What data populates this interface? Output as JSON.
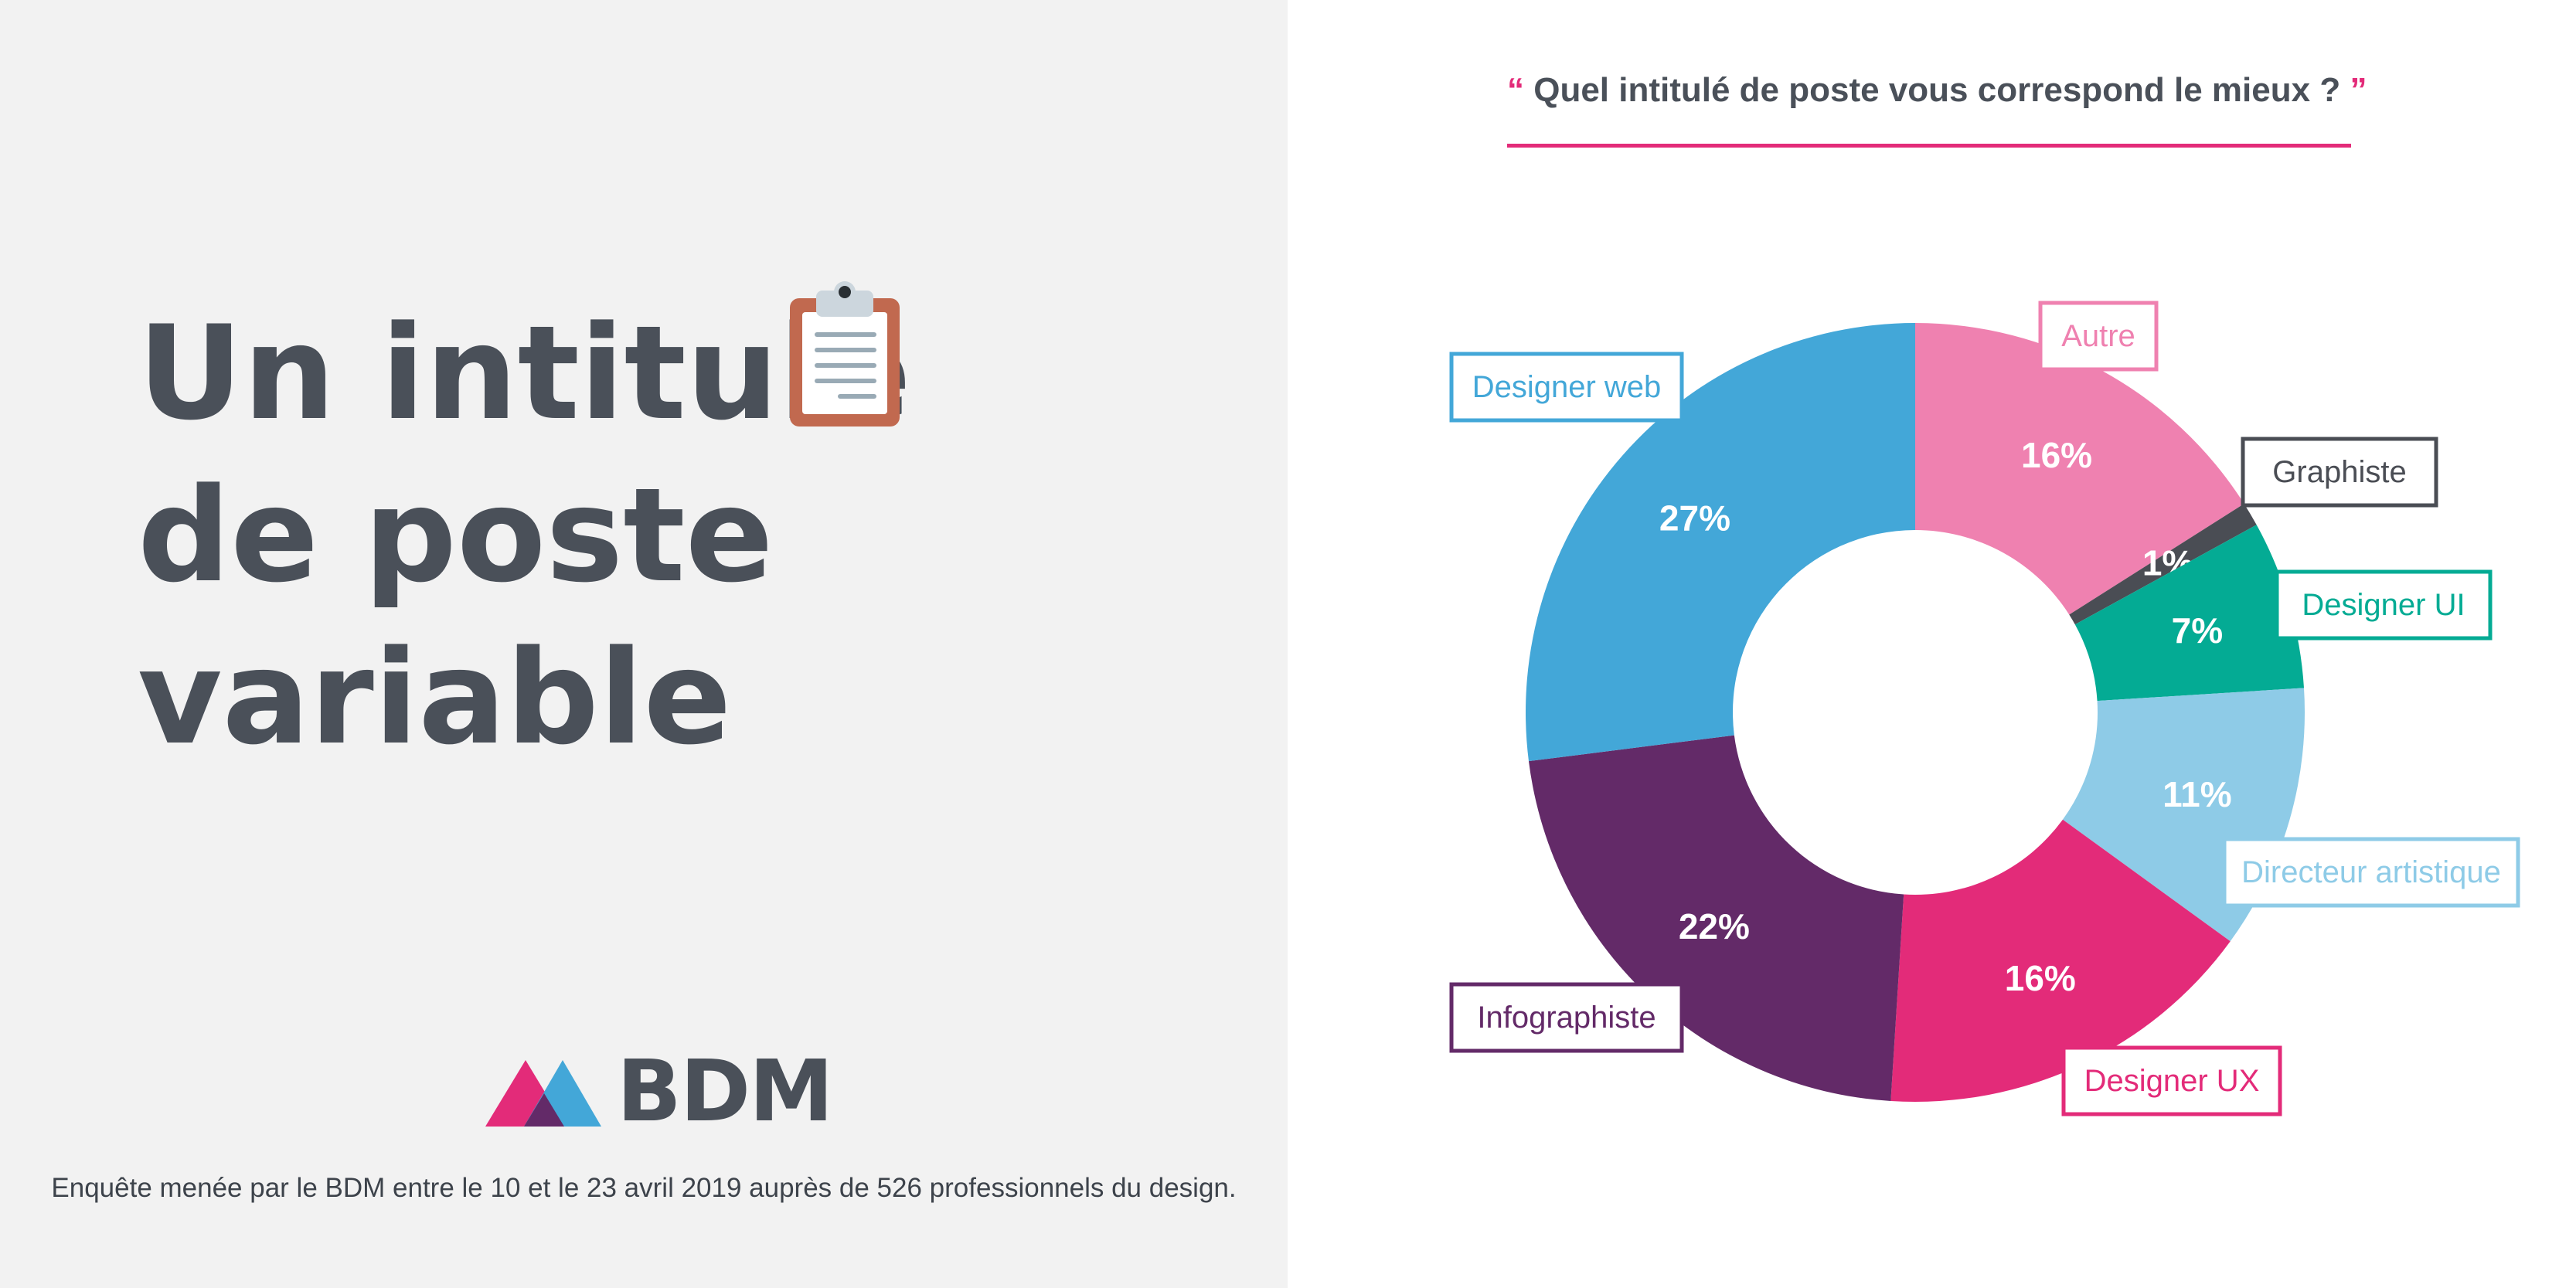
{
  "headline": {
    "lines": [
      "Un intitulé",
      "de poste",
      "variable"
    ]
  },
  "logo": {
    "text": "BDM"
  },
  "footnote": "Enquête menée par le BDM entre le 10 et le 23 avril 2019 auprès de 526 professionnels du design.",
  "question": {
    "open_quote": "“",
    "text": "Quel intitulé de poste vous correspond le mieux ?",
    "close_quote": "”"
  },
  "chart_data": {
    "type": "pie",
    "donut": true,
    "question": "Quel intitulé de poste vous correspond le mieux ?",
    "categories": [
      "Autre",
      "Graphiste",
      "Designer UI",
      "Directeur artistique",
      "Designer UX",
      "Infographiste",
      "Designer web"
    ],
    "values": [
      16,
      1,
      7,
      11,
      16,
      22,
      27
    ],
    "value_labels": [
      "16%",
      "1%",
      "7%",
      "11%",
      "16%",
      "22%",
      "27%"
    ],
    "colors": [
      "#ef81b0",
      "#4a4d54",
      "#04ab94",
      "#8ecbe7",
      "#e32b79",
      "#632a68",
      "#43a7d8"
    ],
    "unit": "%"
  }
}
